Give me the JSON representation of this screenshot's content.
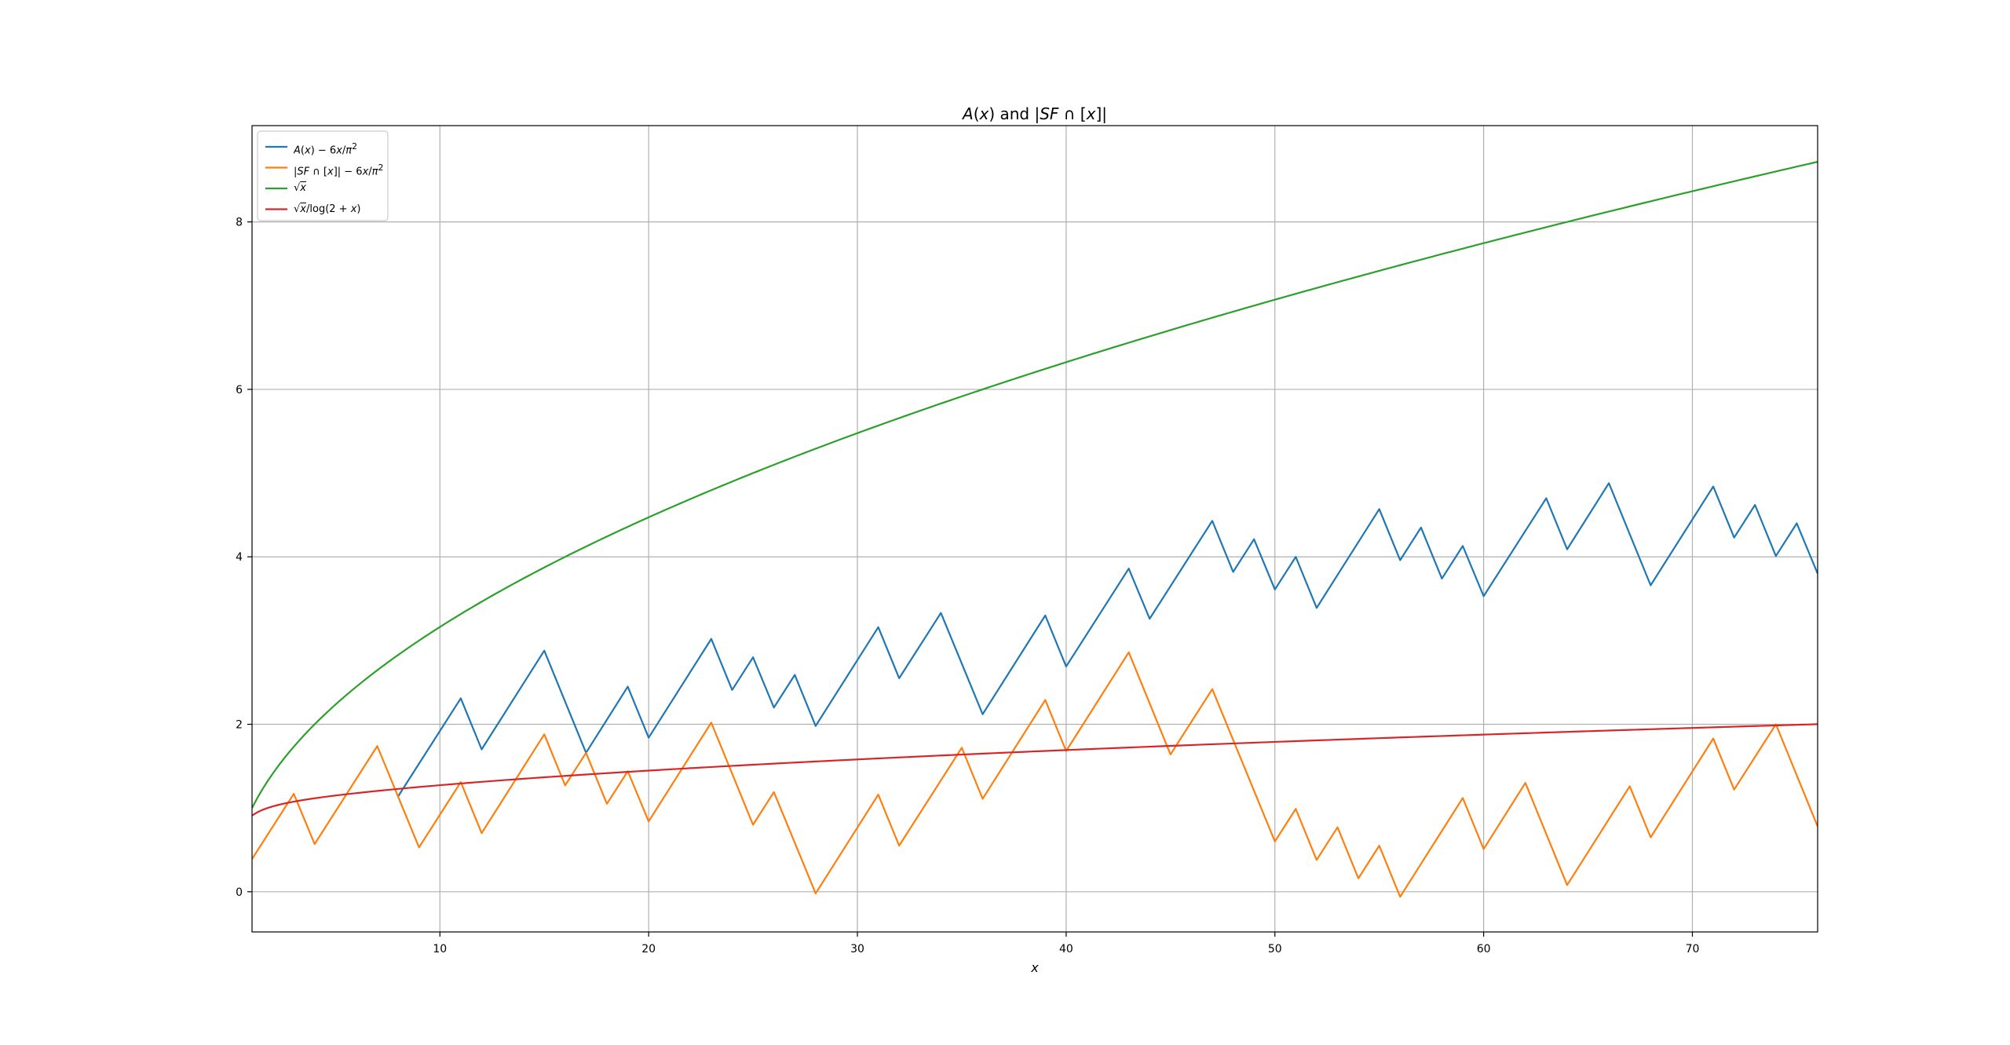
{
  "chart_data": {
    "type": "line",
    "title": "A(x) and |SF ∩ [x]|",
    "xlabel": "x",
    "ylabel": "",
    "xlim": [
      1,
      76
    ],
    "ylim": [
      -0.48,
      9.15
    ],
    "xticks": [
      10,
      20,
      30,
      40,
      50,
      60,
      70
    ],
    "yticks": [
      0,
      2,
      4,
      6,
      8
    ],
    "grid": true,
    "legend_position": "top-left",
    "series": [
      {
        "name": "A(x) − 6x/π²",
        "color": "#1f77b4",
        "x": [
          8,
          11,
          12,
          15,
          17,
          19,
          20,
          23,
          24,
          25,
          26,
          27,
          28,
          31,
          32,
          34,
          36,
          39,
          40,
          43,
          44,
          47,
          48,
          49,
          50,
          51,
          52,
          55,
          56,
          57,
          58,
          59,
          60,
          63,
          64,
          66,
          68,
          71,
          72,
          73,
          74,
          75,
          76
        ],
        "y": [
          1.14,
          2.31,
          1.7,
          2.88,
          1.66,
          2.45,
          1.84,
          3.02,
          2.41,
          2.8,
          2.2,
          2.59,
          1.98,
          3.16,
          2.55,
          3.33,
          2.12,
          3.3,
          2.69,
          3.86,
          3.26,
          4.43,
          3.82,
          4.21,
          3.61,
          4.0,
          3.39,
          4.57,
          3.96,
          4.35,
          3.74,
          4.13,
          3.53,
          4.7,
          4.09,
          4.88,
          3.66,
          4.84,
          4.23,
          4.62,
          4.01,
          4.4,
          3.8
        ]
      },
      {
        "name": "|SF ∩ [x]| − 6x/π²",
        "color": "#ff7f0e",
        "x": [
          1,
          3,
          4,
          7,
          9,
          11,
          12,
          15,
          16,
          17,
          18,
          19,
          20,
          23,
          25,
          26,
          28,
          31,
          32,
          35,
          36,
          39,
          40,
          43,
          45,
          47,
          50,
          51,
          52,
          53,
          54,
          55,
          56,
          59,
          60,
          62,
          64,
          67,
          68,
          71,
          72,
          74,
          76
        ],
        "y": [
          0.39,
          1.17,
          0.57,
          1.74,
          0.53,
          1.31,
          0.7,
          1.88,
          1.27,
          1.66,
          1.05,
          1.44,
          0.84,
          2.02,
          0.8,
          1.19,
          -0.02,
          1.16,
          0.55,
          1.72,
          1.11,
          2.29,
          1.68,
          2.86,
          1.64,
          2.42,
          0.6,
          0.99,
          0.38,
          0.77,
          0.16,
          0.55,
          -0.06,
          1.12,
          0.51,
          1.3,
          0.08,
          1.26,
          0.65,
          1.83,
          1.22,
          2.0,
          0.78
        ]
      },
      {
        "name": "√x",
        "color": "#2ca02c",
        "function": "sqrt"
      },
      {
        "name": "√x/log(2 + x)",
        "color": "#d62728",
        "function": "sqrt_over_log2x"
      }
    ]
  },
  "legend": [
    {
      "label_html": "<i>A</i>(<i>x</i>) − 6<i>x</i>/<i>π</i><sup>2</sup>",
      "color": "#1f77b4"
    },
    {
      "label_html": "|<i>SF</i> ∩ [<i>x</i>]| − 6<i>x</i>/<i>π</i><sup>2</sup>",
      "color": "#ff7f0e"
    },
    {
      "label_html": "√<span style=\"text-decoration:overline\"><i>x</i></span>",
      "color": "#2ca02c"
    },
    {
      "label_html": "√<span style=\"text-decoration:overline\"><i>x</i></span>/log(2 + <i>x</i>)",
      "color": "#d62728"
    }
  ]
}
